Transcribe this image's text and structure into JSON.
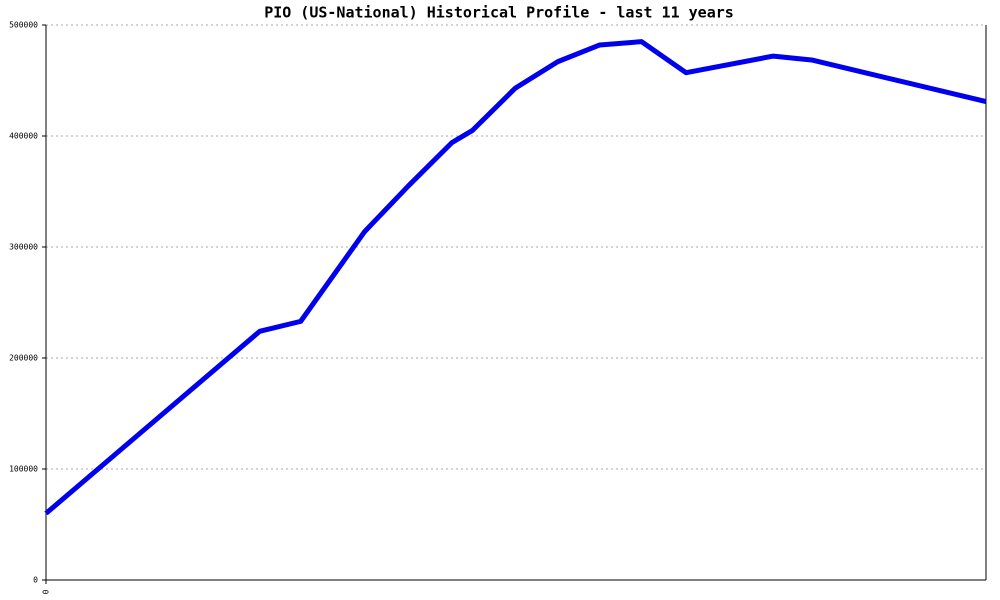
{
  "chart_data": {
    "type": "line",
    "title": "PIO (US-National) Historical Profile - last 11 years",
    "x": [
      0,
      2.5,
      2.98,
      3.73,
      4.24,
      4.75,
      4.99,
      5.49,
      5.99,
      6.48,
      6.97,
      7.49,
      8.51,
      8.96,
      11
    ],
    "series": [
      {
        "name": "PIO",
        "color": "#0000ee",
        "values": [
          60000,
          224000,
          233000,
          314000,
          355000,
          394000,
          405000,
          443000,
          467000,
          482000,
          485000,
          457000,
          472000,
          468500,
          431000
        ]
      }
    ],
    "xlim": [
      0,
      11
    ],
    "xticks": [
      0
    ],
    "ylim": [
      0,
      500000
    ],
    "yticks": [
      0,
      100000,
      200000,
      300000,
      400000,
      500000
    ],
    "grid": true
  }
}
